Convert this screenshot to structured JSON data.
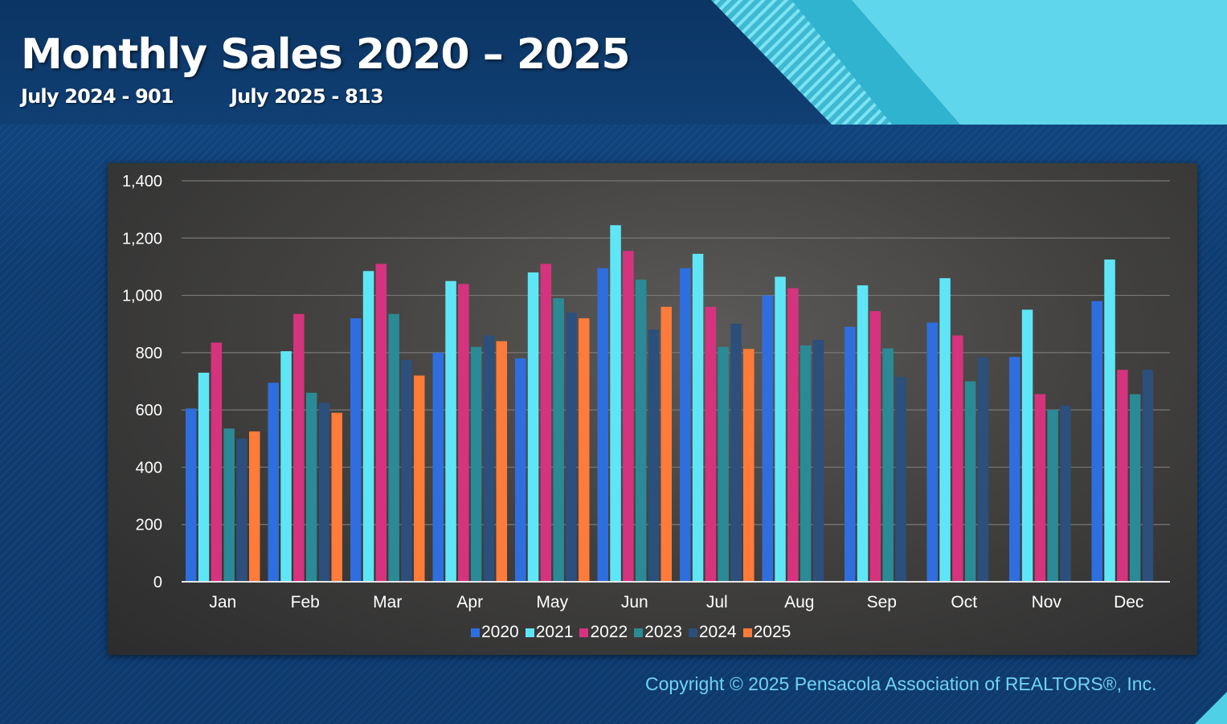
{
  "slide": {
    "title": "Monthly Sales 2020 – 2025",
    "subtitle_left": "July 2024 - 901",
    "subtitle_right": "July 2025 - 813",
    "copyright": "Copyright © 2025 Pensacola Association of REALTORS®, Inc."
  },
  "colors": {
    "background": "#0f3c72",
    "accent": "#4fd0e6",
    "copyright_text": "#6fd3f4"
  },
  "chart_data": {
    "type": "bar",
    "title": "",
    "xlabel": "",
    "ylabel": "",
    "ylim": [
      0,
      1400
    ],
    "yticks": [
      0,
      200,
      400,
      600,
      800,
      1000,
      1200,
      1400
    ],
    "ytick_labels": [
      "0",
      "200",
      "400",
      "600",
      "800",
      "1,000",
      "1,200",
      "1,400"
    ],
    "grid": true,
    "legend_position": "bottom",
    "categories": [
      "Jan",
      "Feb",
      "Mar",
      "Apr",
      "May",
      "Jun",
      "Jul",
      "Aug",
      "Sep",
      "Oct",
      "Nov",
      "Dec"
    ],
    "series": [
      {
        "name": "2020",
        "color": "#2f6ede",
        "values": [
          605,
          695,
          920,
          800,
          780,
          1095,
          1095,
          1000,
          890,
          905,
          785,
          980
        ]
      },
      {
        "name": "2021",
        "color": "#5fe6f6",
        "values": [
          730,
          805,
          1085,
          1050,
          1080,
          1245,
          1145,
          1065,
          1035,
          1060,
          950,
          1125
        ]
      },
      {
        "name": "2022",
        "color": "#d6337e",
        "values": [
          835,
          935,
          1110,
          1040,
          1110,
          1155,
          960,
          1025,
          945,
          860,
          655,
          740
        ]
      },
      {
        "name": "2023",
        "color": "#2a8a96",
        "values": [
          535,
          660,
          935,
          820,
          990,
          1055,
          820,
          825,
          815,
          700,
          600,
          655
        ]
      },
      {
        "name": "2024",
        "color": "#2c4f7c",
        "values": [
          500,
          625,
          775,
          860,
          940,
          880,
          901,
          845,
          715,
          785,
          615,
          740
        ]
      },
      {
        "name": "2025",
        "color": "#ff7b3a",
        "values": [
          525,
          590,
          720,
          840,
          920,
          960,
          813,
          null,
          null,
          null,
          null,
          null
        ]
      }
    ]
  }
}
